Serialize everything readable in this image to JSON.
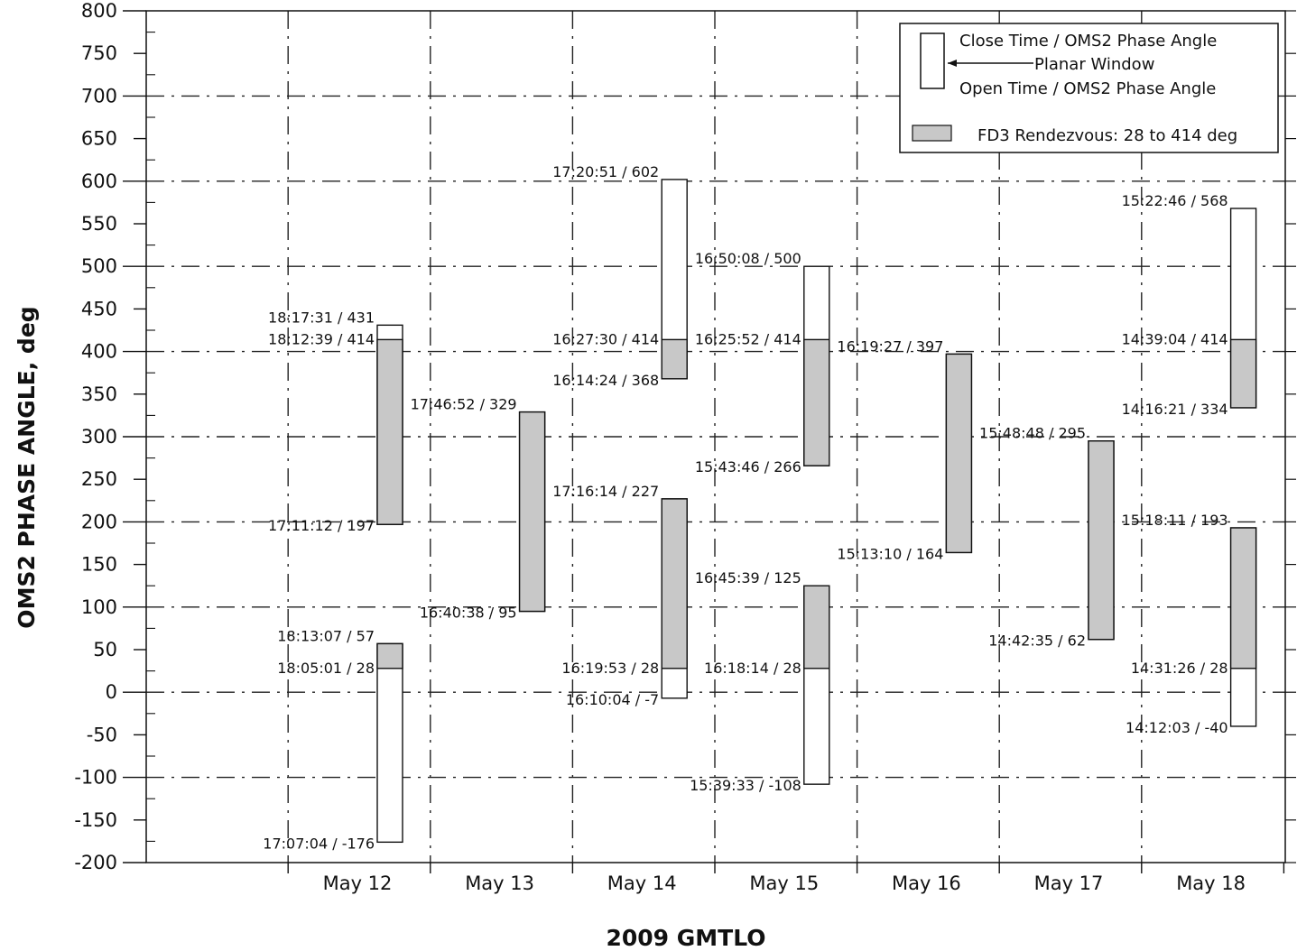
{
  "chart_data": {
    "type": "bar",
    "title": "",
    "xlabel": "2009 GMTLO",
    "ylabel": "OMS2 PHASE ANGLE, deg",
    "ylim": [
      -200,
      800
    ],
    "yticks": [
      "800",
      "750",
      "700",
      "650",
      "600",
      "550",
      "500",
      "450",
      "400",
      "350",
      "300",
      "250",
      "200",
      "150",
      "100",
      "50",
      "0",
      "-50",
      "-100",
      "-150",
      "-200"
    ],
    "categories": [
      "May 12",
      "May 13",
      "May 14",
      "May 15",
      "May 16",
      "May 17",
      "May 18"
    ],
    "grid": true,
    "legend": {
      "position": "top-right",
      "close_label": "Close Time / OMS2 Phase Angle",
      "window_label": "Planar Window",
      "open_label": "Open Time / OMS2 Phase Angle",
      "rendezvous_label": "FD3 Rendezvous: 28 to 414 deg"
    },
    "colors": {
      "rendezvous": "#c8c8c8",
      "window": "#ffffff",
      "grid": "#222222"
    },
    "rendezvous_range": [
      28,
      414
    ],
    "windows": [
      {
        "category": "May 12",
        "low": 197,
        "high": 431,
        "labels": [
          {
            "text": "18:17:31 / 431",
            "value": 431
          },
          {
            "text": "18:12:39 / 414",
            "value": 414
          },
          {
            "text": "17:11:12 / 197",
            "value": 197
          }
        ]
      },
      {
        "category": "May 12",
        "low": -176,
        "high": 57,
        "labels": [
          {
            "text": "18:13:07 / 57",
            "value": 57
          },
          {
            "text": "18:05:01 / 28",
            "value": 28
          },
          {
            "text": "17:07:04 / -176",
            "value": -176
          }
        ]
      },
      {
        "category": "May 13",
        "low": 95,
        "high": 329,
        "labels": [
          {
            "text": "17:46:52 / 329",
            "value": 329
          },
          {
            "text": "16:40:38 / 95",
            "value": 95
          }
        ]
      },
      {
        "category": "May 14",
        "low": 368,
        "high": 602,
        "labels": [
          {
            "text": "17:20:51 / 602",
            "value": 602
          },
          {
            "text": "16:27:30 / 414",
            "value": 414
          },
          {
            "text": "16:14:24 / 368",
            "value": 368
          }
        ]
      },
      {
        "category": "May 14",
        "low": -7,
        "high": 227,
        "labels": [
          {
            "text": "17:16:14 / 227",
            "value": 227
          },
          {
            "text": "16:19:53 / 28",
            "value": 28
          },
          {
            "text": "16:10:04 / -7",
            "value": -7
          }
        ]
      },
      {
        "category": "May 15",
        "low": 266,
        "high": 500,
        "labels": [
          {
            "text": "16:50:08 / 500",
            "value": 500
          },
          {
            "text": "16:25:52 / 414",
            "value": 414
          },
          {
            "text": "15:43:46 / 266",
            "value": 266
          }
        ]
      },
      {
        "category": "May 15",
        "low": -108,
        "high": 125,
        "labels": [
          {
            "text": "16:45:39 / 125",
            "value": 125
          },
          {
            "text": "16:18:14 / 28",
            "value": 28
          },
          {
            "text": "15:39:33 / -108",
            "value": -108
          }
        ]
      },
      {
        "category": "May 16",
        "low": 164,
        "high": 397,
        "labels": [
          {
            "text": "16:19:27 / 397",
            "value": 397
          },
          {
            "text": "15:13:10 / 164",
            "value": 164
          }
        ]
      },
      {
        "category": "May 17",
        "low": 62,
        "high": 295,
        "labels": [
          {
            "text": "15:48:48 / 295",
            "value": 295
          },
          {
            "text": "14:42:35 / 62",
            "value": 62
          }
        ]
      },
      {
        "category": "May 18",
        "low": 334,
        "high": 568,
        "labels": [
          {
            "text": "15:22:46 / 568",
            "value": 568
          },
          {
            "text": "14:39:04 / 414",
            "value": 414
          },
          {
            "text": "14:16:21 / 334",
            "value": 334
          }
        ]
      },
      {
        "category": "May 18",
        "low": -40,
        "high": 193,
        "labels": [
          {
            "text": "15:18:11 / 193",
            "value": 193
          },
          {
            "text": "14:31:26 / 28",
            "value": 28
          },
          {
            "text": "14:12:03 / -40",
            "value": -40
          }
        ]
      }
    ]
  }
}
